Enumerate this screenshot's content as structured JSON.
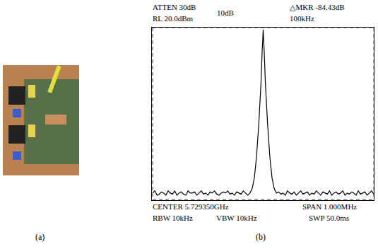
{
  "chart_data": {
    "type": "line",
    "color": "#000000",
    "grid": true,
    "tick_labels": false,
    "annotations": [
      "ATTEN 30dB",
      "RL 20.0dBm",
      "10dB",
      "△MKR -84.43dB",
      "100kHz",
      "CENTER 5.729350GHz",
      "SPAN 1.000MHz",
      "RBW 10kHz",
      "VBW 10kHz",
      "SWP 50.0ms"
    ],
    "xlim": [
      -500,
      500
    ],
    "xticks": [
      -500,
      -400,
      -300,
      -200,
      -100,
      0,
      100,
      200,
      300,
      400,
      500
    ],
    "ylim": [
      -60,
      20
    ],
    "yticks": [
      -60,
      -50,
      -40,
      -30,
      -20,
      -10,
      0,
      10,
      20
    ],
    "x": [
      -500,
      -490,
      -480,
      -470,
      -460,
      -450,
      -440,
      -430,
      -420,
      -410,
      -400,
      -390,
      -380,
      -370,
      -360,
      -350,
      -340,
      -330,
      -320,
      -310,
      -300,
      -290,
      -280,
      -270,
      -260,
      -250,
      -240,
      -230,
      -220,
      -210,
      -200,
      -190,
      -180,
      -170,
      -160,
      -150,
      -140,
      -130,
      -120,
      -110,
      -100,
      -90,
      -80,
      -70,
      -60,
      -50,
      -40,
      -30,
      -20,
      -10,
      -5,
      0,
      5,
      10,
      20,
      30,
      40,
      50,
      60,
      70,
      80,
      90,
      100,
      110,
      120,
      130,
      140,
      150,
      160,
      170,
      180,
      190,
      200,
      210,
      220,
      230,
      240,
      250,
      260,
      270,
      280,
      290,
      300,
      310,
      320,
      330,
      340,
      350,
      360,
      370,
      380,
      390,
      400,
      410,
      420,
      430,
      440,
      450,
      460,
      470,
      480,
      490,
      500
    ],
    "values": [
      -57,
      -56,
      -58,
      -57.5,
      -56.5,
      -57,
      -58,
      -56,
      -57,
      -57.5,
      -56,
      -58,
      -57,
      -56.5,
      -57.5,
      -58,
      -56,
      -57,
      -57,
      -56.5,
      -58,
      -57,
      -56,
      -57.5,
      -57,
      -58,
      -56.5,
      -57,
      -56,
      -57.5,
      -58,
      -57,
      -56.5,
      -57,
      -56,
      -57.5,
      -57,
      -58,
      -56.5,
      -57,
      -57.5,
      -56,
      -57,
      -58,
      -57,
      -55,
      -50,
      -40,
      -25,
      -6,
      8,
      19,
      8,
      -6,
      -25,
      -40,
      -50,
      -55,
      -57,
      -56.5,
      -57.5,
      -57,
      -58,
      -56,
      -57,
      -57.5,
      -56.5,
      -58,
      -57,
      -56,
      -57.5,
      -57,
      -56.5,
      -58,
      -57,
      -57.5,
      -56,
      -57,
      -58,
      -56.5,
      -57,
      -57.5,
      -56,
      -58,
      -57,
      -56.5,
      -57.5,
      -57,
      -56,
      -58,
      -57,
      -57.5,
      -56.5,
      -57,
      -58,
      -56,
      -57.5,
      -57,
      -56.5,
      -58,
      -57,
      -56,
      -57.5
    ]
  },
  "panel_labels": [
    "(a)",
    "(b)"
  ]
}
